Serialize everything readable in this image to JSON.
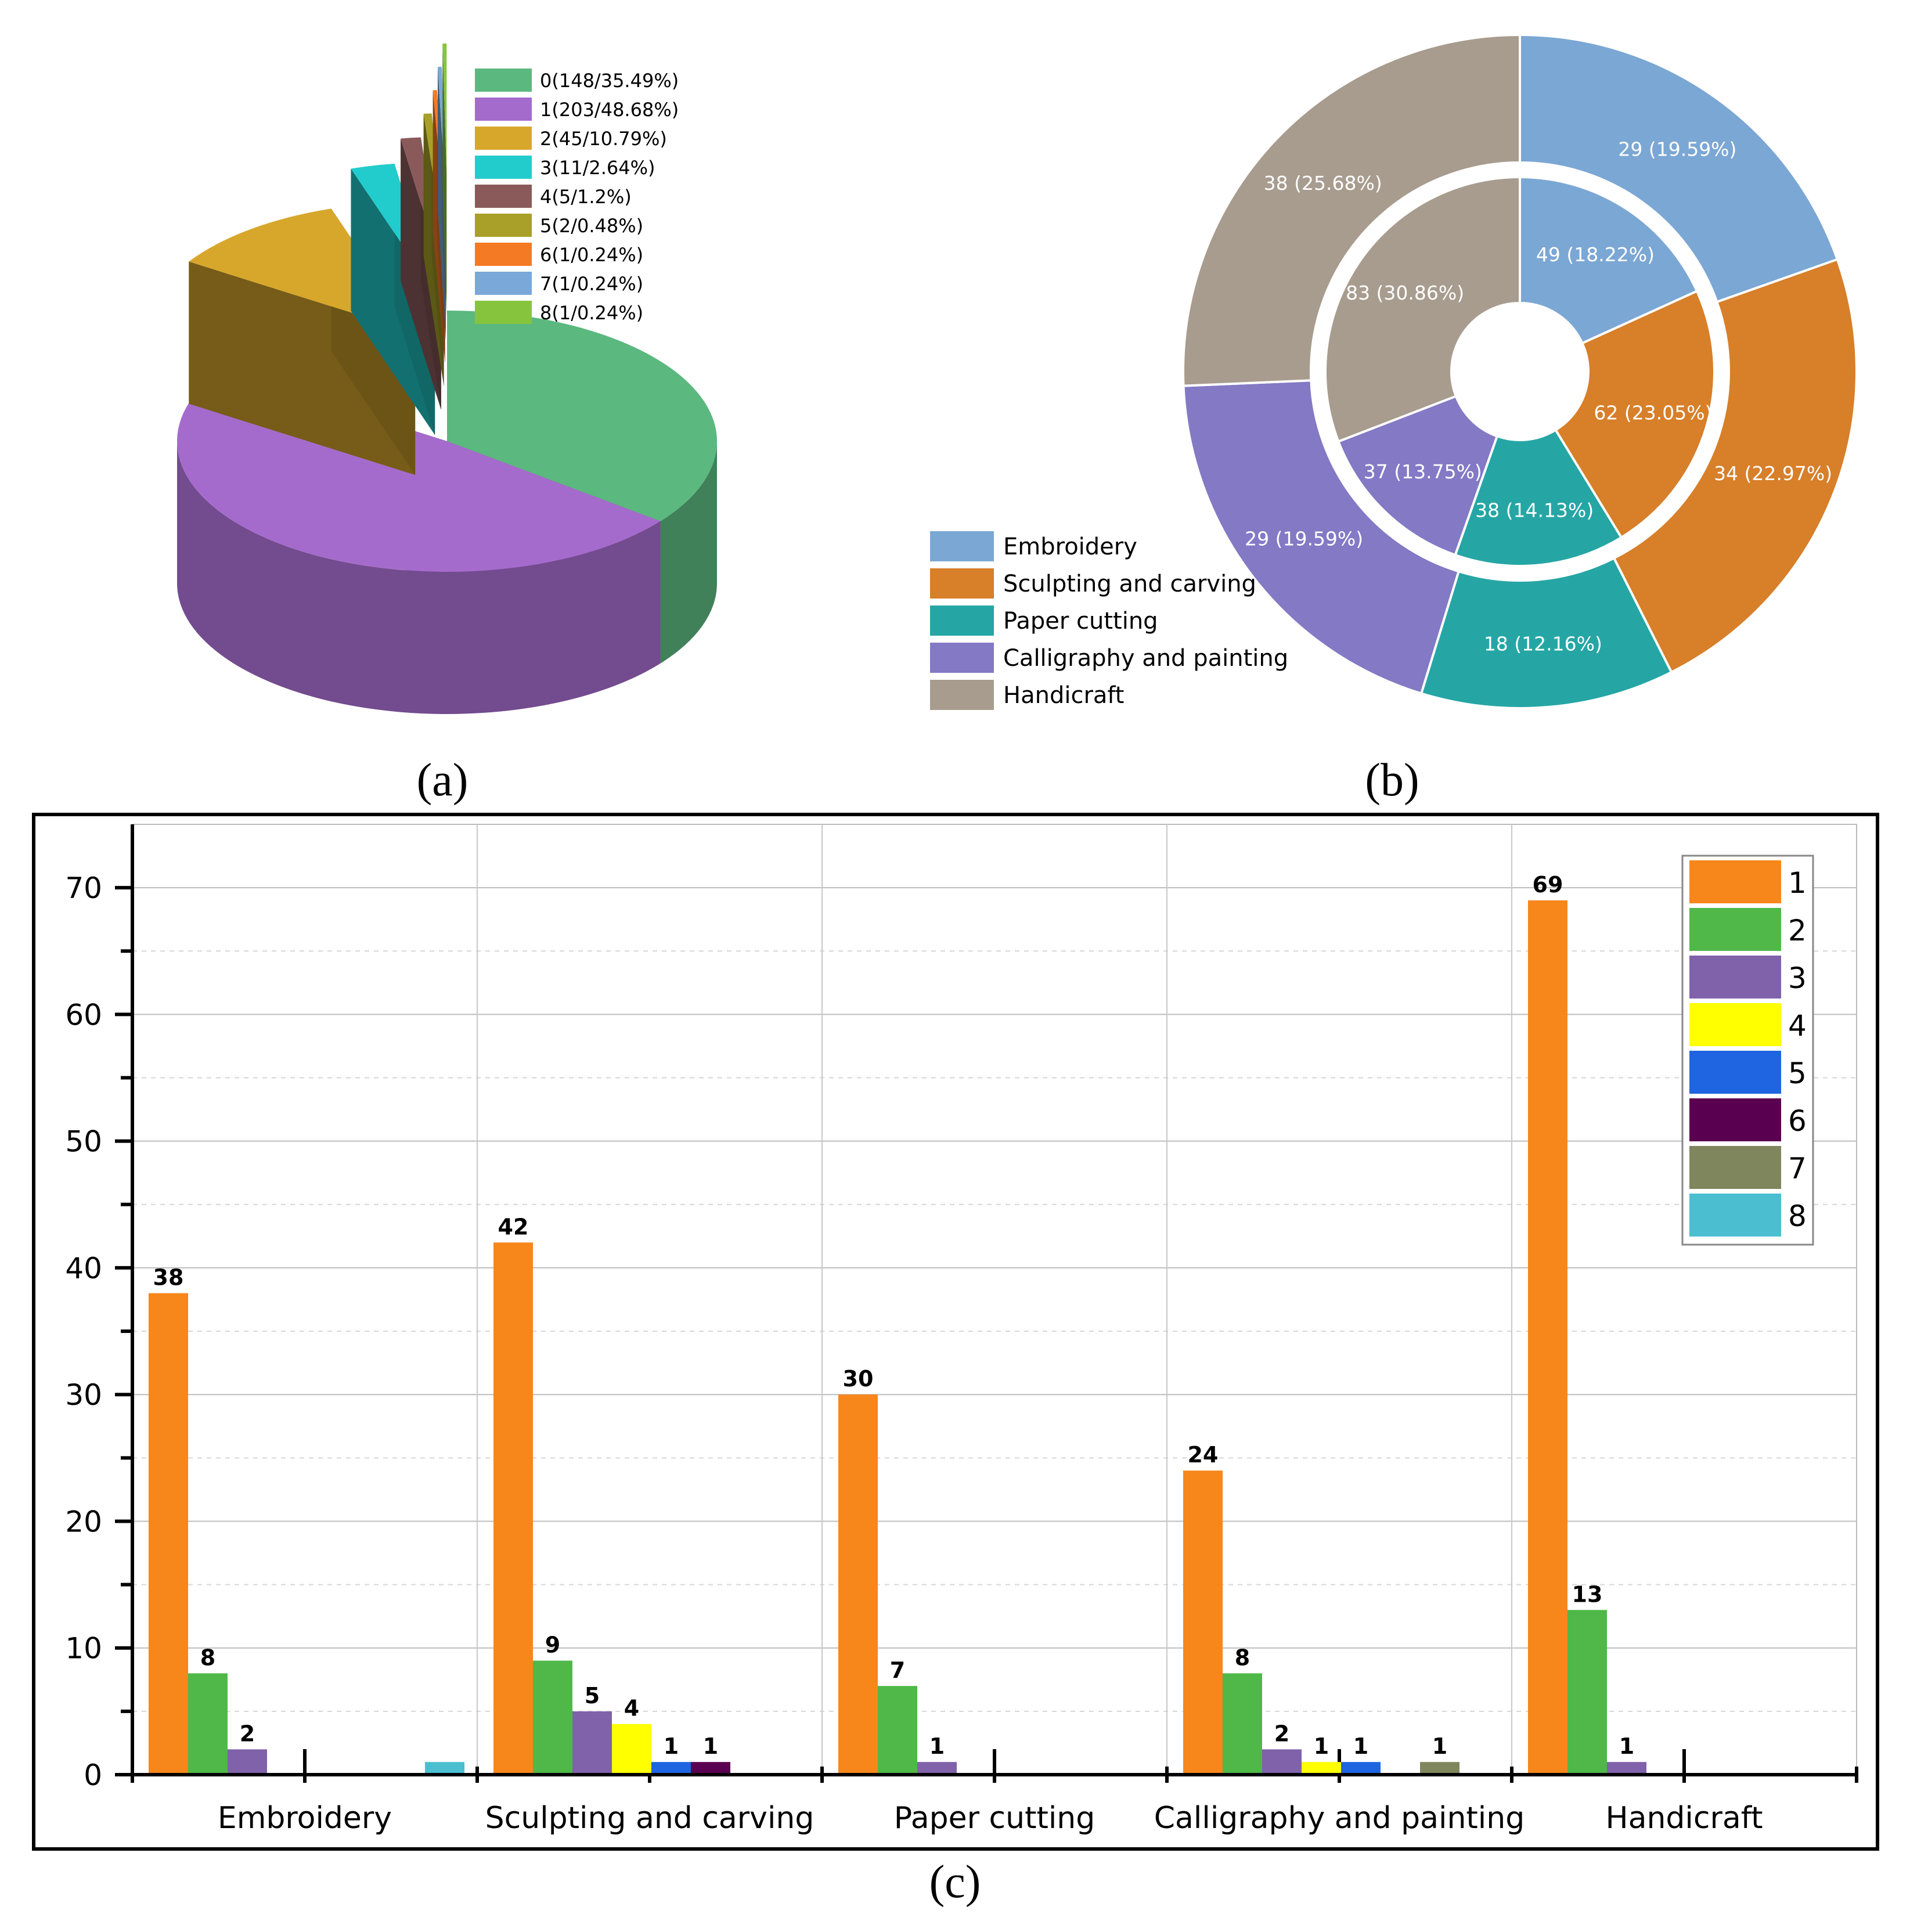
{
  "captions": {
    "a": "(a)",
    "b": "(b)",
    "c": "(c)"
  },
  "colors": {
    "pie": [
      "#5bb87f",
      "#a56bcc",
      "#d7a72c",
      "#22cccc",
      "#8a5a5a",
      "#a8a028",
      "#f47a24",
      "#7aa8d8",
      "#86c43e"
    ],
    "donut": [
      "#7ba7d4",
      "#d77f29",
      "#25a6a5",
      "#8479c5",
      "#a89c8f"
    ],
    "bars": [
      "#f7861b",
      "#4fb848",
      "#7f62aa",
      "#ffff00",
      "#1f64e0",
      "#5a0050",
      "#7f865e",
      "#4bbfcf"
    ]
  },
  "chart_data": [
    {
      "type": "pie",
      "id": "a",
      "title": "",
      "legend_position": "top-right",
      "categories": [
        "0",
        "1",
        "2",
        "3",
        "4",
        "5",
        "6",
        "7",
        "8"
      ],
      "values": [
        148,
        203,
        45,
        11,
        5,
        2,
        1,
        1,
        1
      ],
      "percents": [
        35.49,
        48.68,
        10.79,
        2.64,
        1.2,
        0.48,
        0.24,
        0.24,
        0.24
      ],
      "legend": [
        "0(148/35.49%)",
        "1(203/48.68%)",
        "2(45/10.79%)",
        "3(11/2.64%)",
        "4(5/1.2%)",
        "5(2/0.48%)",
        "6(1/0.24%)",
        "7(1/0.24%)",
        "8(1/0.24%)"
      ]
    },
    {
      "type": "pie",
      "id": "b",
      "variant": "donut",
      "legend_position": "bottom-left",
      "categories": [
        "Embroidery",
        "Sculpting and carving",
        "Paper cutting",
        "Calligraphy and painting",
        "Handicraft"
      ],
      "series": [
        {
          "name": "inner",
          "values": [
            49,
            62,
            38,
            37,
            83
          ],
          "labels": [
            "49 (18.22%)",
            "62 (23.05%)",
            "38 (14.13%)",
            "37 (13.75%)",
            "83 (30.86%)"
          ]
        },
        {
          "name": "outer",
          "values": [
            29,
            34,
            18,
            29,
            38
          ],
          "labels": [
            "29 (19.59%)",
            "34 (22.97%)",
            "18 (12.16%)",
            "29 (19.59%)",
            "38 (25.68%)"
          ]
        }
      ]
    },
    {
      "type": "bar",
      "id": "c",
      "title": "",
      "xlabel": "",
      "ylabel": "",
      "ylim": [
        0,
        75
      ],
      "yticks": [
        "0",
        "10",
        "20",
        "30",
        "40",
        "50",
        "60",
        "70"
      ],
      "grid": true,
      "legend_position": "top-right",
      "categories": [
        "Embroidery",
        "Sculpting and carving",
        "Paper cutting",
        "Calligraphy and painting",
        "Handicraft"
      ],
      "series": [
        {
          "name": "1",
          "values": [
            38,
            42,
            30,
            24,
            69
          ]
        },
        {
          "name": "2",
          "values": [
            8,
            9,
            7,
            8,
            13
          ]
        },
        {
          "name": "3",
          "values": [
            2,
            5,
            1,
            2,
            1
          ]
        },
        {
          "name": "4",
          "values": [
            0,
            4,
            0,
            1,
            0
          ]
        },
        {
          "name": "5",
          "values": [
            0,
            1,
            0,
            1,
            0
          ]
        },
        {
          "name": "6",
          "values": [
            0,
            1,
            0,
            0,
            0
          ]
        },
        {
          "name": "7",
          "values": [
            0,
            0,
            0,
            1,
            0
          ]
        },
        {
          "name": "8",
          "values": [
            1,
            0,
            0,
            0,
            0
          ]
        }
      ],
      "value_labels": [
        [
          "38",
          "8",
          "2",
          "",
          "",
          "",
          "",
          ""
        ],
        [
          "42",
          "9",
          "5",
          "4",
          "1",
          "1",
          "",
          ""
        ],
        [
          "30",
          "7",
          "1",
          "",
          "",
          "",
          "",
          ""
        ],
        [
          "24",
          "8",
          "2",
          "1",
          "1",
          "",
          "1",
          ""
        ],
        [
          "69",
          "13",
          "1",
          "",
          "",
          "",
          "",
          ""
        ]
      ]
    }
  ]
}
